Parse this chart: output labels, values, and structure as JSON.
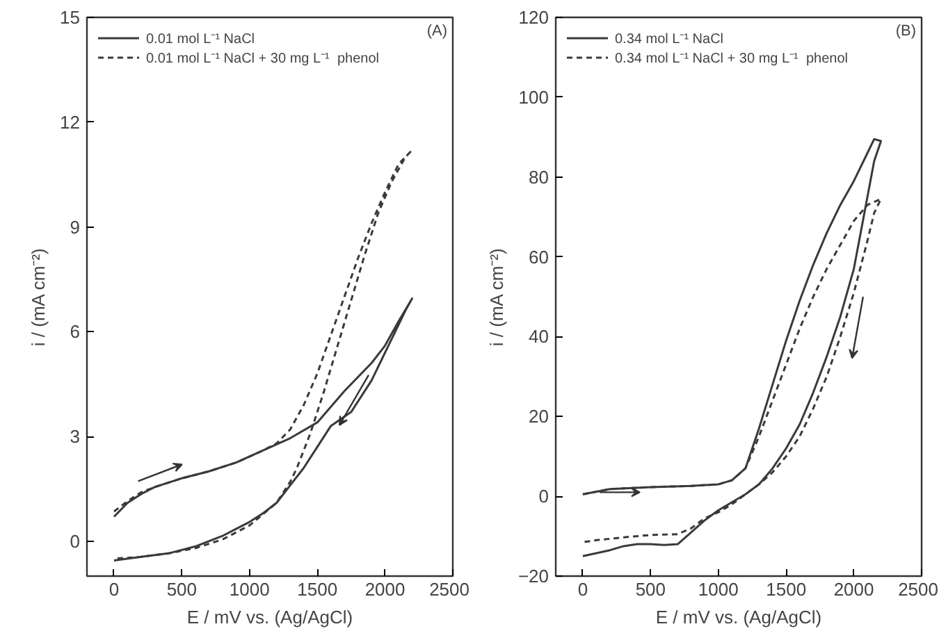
{
  "chart_data": [
    {
      "type": "line",
      "xlabel": "E / mV vs. (Ag/AgCl)",
      "ylabel": "i / (mA cm⁻²)",
      "annotations": [
        "(A)"
      ],
      "xlim": [
        -200,
        2500
      ],
      "ylim": [
        -1,
        15
      ],
      "xticks": [
        0,
        500,
        1000,
        1500,
        2000,
        2500
      ],
      "yticks": [
        0,
        3,
        6,
        9,
        12,
        15
      ],
      "grid": false,
      "legend": "top left",
      "marker": "none",
      "series": [
        {
          "name": "0.01 mol L⁻¹ NaCl",
          "color": "#3a3a3a",
          "line_style": "solid",
          "x": [
            0,
            100,
            200,
            300,
            500,
            700,
            900,
            1100,
            1300,
            1500,
            1700,
            1900,
            2000,
            2100,
            2200,
            2150,
            2050,
            1900,
            1750,
            1600,
            1500,
            1400,
            1300,
            1200,
            1100,
            1000,
            900,
            800,
            600,
            400,
            200,
            0
          ],
          "values": [
            0.7,
            1.1,
            1.35,
            1.55,
            1.8,
            2.0,
            2.25,
            2.6,
            2.95,
            3.4,
            4.3,
            5.1,
            5.6,
            6.3,
            6.95,
            6.6,
            5.8,
            4.6,
            3.7,
            3.3,
            2.7,
            2.1,
            1.6,
            1.1,
            0.8,
            0.55,
            0.35,
            0.15,
            -0.15,
            -0.35,
            -0.45,
            -0.55
          ]
        },
        {
          "name": "0.01 mol L⁻¹ NaCl + 30 mg L⁻¹  phenol",
          "color": "#3a3a3a",
          "line_style": "dashed",
          "x": [
            0,
            100,
            200,
            300,
            500,
            700,
            900,
            1100,
            1200,
            1300,
            1400,
            1500,
            1600,
            1700,
            1800,
            1900,
            2000,
            2100,
            2200,
            2150,
            2050,
            1950,
            1850,
            1750,
            1650,
            1550,
            1450,
            1350,
            1300,
            1200,
            1000,
            800,
            600,
            400,
            200,
            0
          ],
          "values": [
            0.85,
            1.15,
            1.4,
            1.55,
            1.8,
            2.0,
            2.25,
            2.6,
            2.8,
            3.2,
            3.9,
            4.8,
            5.9,
            7.0,
            8.1,
            9.1,
            10.0,
            10.8,
            11.2,
            11.0,
            10.3,
            9.4,
            8.2,
            6.9,
            5.6,
            4.3,
            3.1,
            2.1,
            1.7,
            1.1,
            0.45,
            0.05,
            -0.2,
            -0.35,
            -0.45,
            -0.5
          ]
        }
      ]
    },
    {
      "type": "line",
      "xlabel": "E / mV vs. (Ag/AgCl)",
      "ylabel": "i / (mA cm⁻²)",
      "annotations": [
        "(B)"
      ],
      "xlim": [
        -200,
        2500
      ],
      "ylim": [
        -20,
        120
      ],
      "xticks": [
        0,
        500,
        1000,
        1500,
        2000,
        2500
      ],
      "yticks": [
        -20,
        0,
        20,
        40,
        60,
        80,
        100,
        120
      ],
      "grid": false,
      "legend": "top left",
      "marker": "none",
      "series": [
        {
          "name": "0.34 mol L⁻¹ NaCl",
          "color": "#3a3a3a",
          "line_style": "solid",
          "x": [
            0,
            200,
            500,
            800,
            1000,
            1100,
            1200,
            1300,
            1400,
            1500,
            1600,
            1700,
            1800,
            1900,
            2000,
            2100,
            2150,
            2200,
            2150,
            2100,
            2050,
            2000,
            1900,
            1800,
            1700,
            1600,
            1500,
            1400,
            1300,
            1200,
            1100,
            1000,
            900,
            800,
            700,
            600,
            500,
            400,
            300,
            200,
            0
          ],
          "values": [
            0.5,
            1.8,
            2.3,
            2.6,
            3,
            4,
            7,
            17,
            28,
            39,
            49,
            58,
            66,
            73,
            79,
            86,
            89.5,
            89,
            84,
            75,
            66,
            57,
            45,
            35,
            26,
            18,
            12,
            7,
            3,
            0.5,
            -1.5,
            -3.5,
            -6,
            -9,
            -12,
            -12.2,
            -12,
            -12,
            -12.5,
            -13.5,
            -15
          ]
        },
        {
          "name": "0.34 mol L⁻¹ NaCl + 30 mg L⁻¹  phenol",
          "color": "#3a3a3a",
          "line_style": "dashed",
          "x": [
            0,
            200,
            500,
            800,
            1000,
            1100,
            1200,
            1300,
            1400,
            1500,
            1600,
            1700,
            1800,
            1900,
            2000,
            2100,
            2200,
            2150,
            2100,
            2000,
            1900,
            1800,
            1700,
            1600,
            1500,
            1400,
            1300,
            1200,
            1100,
            1000,
            900,
            800,
            700,
            500,
            300,
            100,
            0
          ],
          "values": [
            0.5,
            1.8,
            2.3,
            2.6,
            3,
            4,
            7,
            15,
            24,
            33,
            42,
            50,
            57,
            63,
            69,
            73,
            74.5,
            71,
            64,
            51,
            40,
            30,
            22,
            15,
            10,
            6,
            3,
            0.5,
            -2,
            -4,
            -5.5,
            -8,
            -9.5,
            -9.7,
            -10.3,
            -11,
            -11.5
          ]
        }
      ]
    }
  ]
}
